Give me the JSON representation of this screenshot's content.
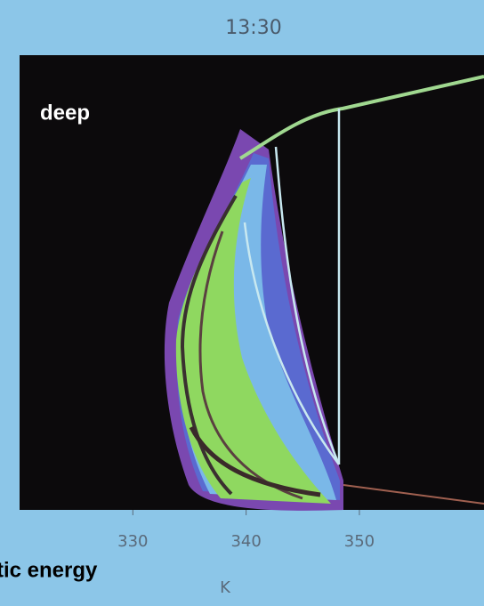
{
  "chart_data": {
    "type": "density",
    "title": "13:30",
    "annotation": "deep",
    "xlabel": "K",
    "side_label": "tic energy",
    "xlim": [
      320,
      361
    ],
    "xticks": [
      330,
      340,
      350
    ]
  }
}
